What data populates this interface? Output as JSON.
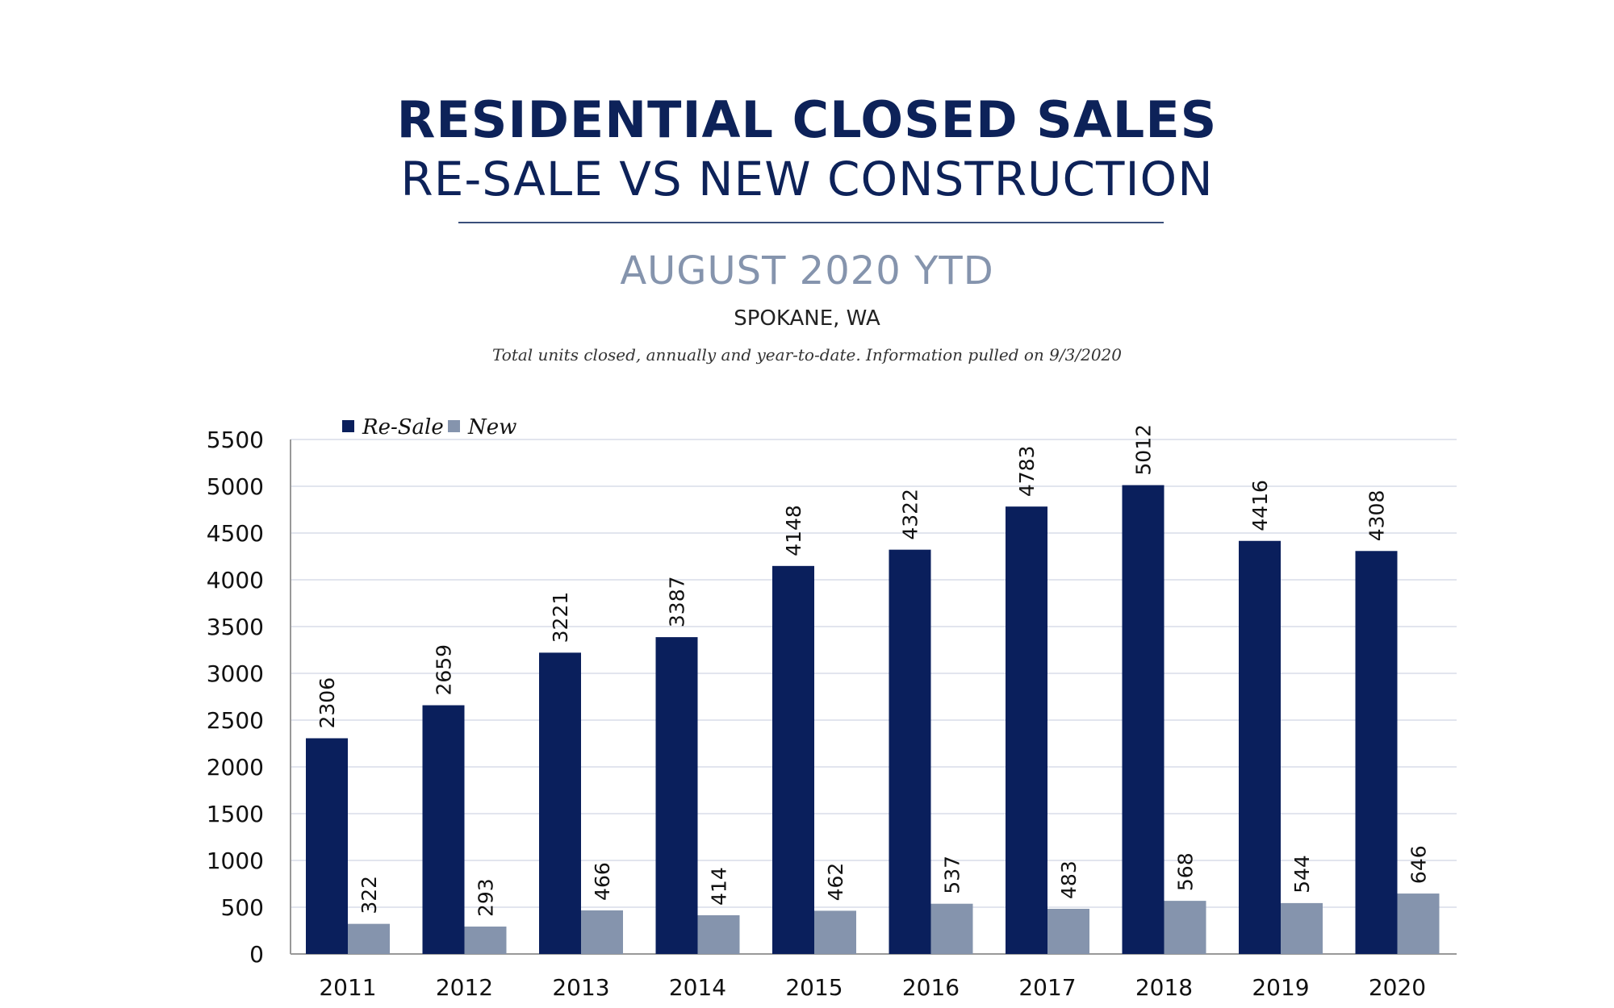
{
  "header": {
    "title": "RESIDENTIAL CLOSED SALES",
    "subtitle": "RE-SALE VS NEW CONSTRUCTION",
    "period": "AUGUST 2020 YTD",
    "location": "SPOKANE, WA",
    "note": "Total units closed, annually and year-to-date.  Information pulled on 9/3/2020"
  },
  "chart_data": {
    "type": "bar",
    "categories": [
      "2011",
      "2012",
      "2013",
      "2014",
      "2015",
      "2016",
      "2017",
      "2018",
      "2019",
      "2020"
    ],
    "series": [
      {
        "name": "Re-Sale",
        "color": "#0a1f5c",
        "values": [
          2306,
          2659,
          3221,
          3387,
          4148,
          4322,
          4783,
          5012,
          4416,
          4308
        ]
      },
      {
        "name": "New",
        "color": "#8594ad",
        "values": [
          322,
          293,
          466,
          414,
          462,
          537,
          483,
          568,
          544,
          646
        ]
      }
    ],
    "ylim": [
      0,
      5500
    ],
    "yticks": [
      0,
      500,
      1000,
      1500,
      2000,
      2500,
      3000,
      3500,
      4000,
      4500,
      5000,
      5500
    ],
    "grid": true,
    "legend": "top-left",
    "data_labels": true
  }
}
